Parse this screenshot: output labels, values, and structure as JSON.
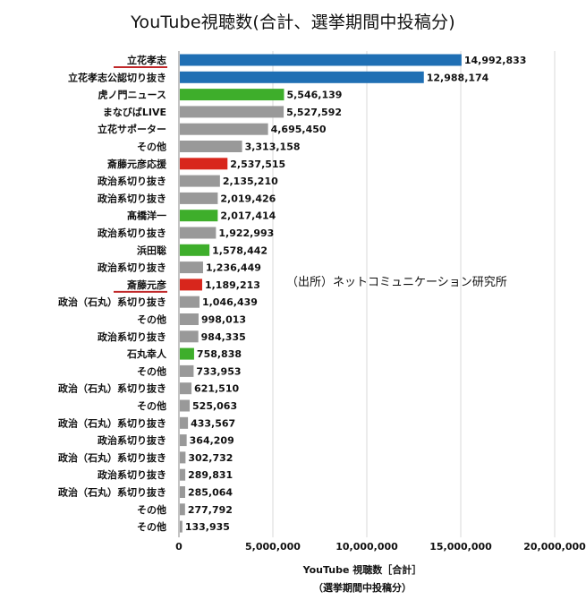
{
  "page": {
    "title": "YouTube視聴数(合計、選挙期間中投稿分)",
    "source": "（出所）ネットコミュニケーション研究所"
  },
  "colors": {
    "blue": "#1f6fb4",
    "green": "#3eae2b",
    "red": "#d8261c",
    "gray": "#999999",
    "underline": "#c0282a",
    "grid": "#d9d9d9"
  },
  "chart_data": {
    "type": "bar",
    "orientation": "horizontal",
    "title": "YouTube視聴数(合計、選挙期間中投稿分)",
    "xlabel": "YouTube 視聴数［合計］",
    "xlabel_sub": "（選挙期間中投稿分）",
    "xlim": [
      0,
      20000000
    ],
    "xticks": [
      0,
      5000000,
      10000000,
      15000000,
      20000000
    ],
    "xtick_labels": [
      "0",
      "5,000,000",
      "10,000,000",
      "15,000,000",
      "20,000,000"
    ],
    "grid": "vertical",
    "categories": [
      "立花孝志",
      "立花孝志公認切り抜き",
      "虎ノ門ニュース",
      "まなびばLIVE",
      "立花サポーター",
      "その他",
      "斎藤元彦応援",
      "政治系切り抜き",
      "政治系切り抜き",
      "髙橋洋一",
      "政治系切り抜き",
      "浜田聡",
      "政治系切り抜き",
      "斎藤元彦",
      "政治（石丸）系切り抜き",
      "その他",
      "政治系切り抜き",
      "石丸幸人",
      "その他",
      "政治（石丸）系切り抜き",
      "その他",
      "政治（石丸）系切り抜き",
      "政治系切り抜き",
      "政治（石丸）系切り抜き",
      "政治系切り抜き",
      "政治（石丸）系切り抜き",
      "その他",
      "その他"
    ],
    "values": [
      14992833,
      12988174,
      5546139,
      5527592,
      4695450,
      3313158,
      2537515,
      2135210,
      2019426,
      2017414,
      1922993,
      1578442,
      1236449,
      1189213,
      1046439,
      998013,
      984335,
      758838,
      733953,
      621510,
      525063,
      433567,
      364209,
      302732,
      289831,
      285064,
      277792,
      133935
    ],
    "value_labels": [
      "14,992,833",
      "12,988,174",
      "5,546,139",
      "5,527,592",
      "4,695,450",
      "3,313,158",
      "2,537,515",
      "2,135,210",
      "2,019,426",
      "2,017,414",
      "1,922,993",
      "1,578,442",
      "1,236,449",
      "1,189,213",
      "1,046,439",
      "998,013",
      "984,335",
      "758,838",
      "733,953",
      "621,510",
      "525,063",
      "433,567",
      "364,209",
      "302,732",
      "289,831",
      "285,064",
      "277,792",
      "133,935"
    ],
    "bar_colors": [
      "blue",
      "blue",
      "green",
      "gray",
      "gray",
      "gray",
      "red",
      "gray",
      "gray",
      "green",
      "gray",
      "green",
      "gray",
      "red",
      "gray",
      "gray",
      "gray",
      "green",
      "gray",
      "gray",
      "gray",
      "gray",
      "gray",
      "gray",
      "gray",
      "gray",
      "gray",
      "gray"
    ],
    "underlined_categories": [
      0,
      13
    ]
  }
}
